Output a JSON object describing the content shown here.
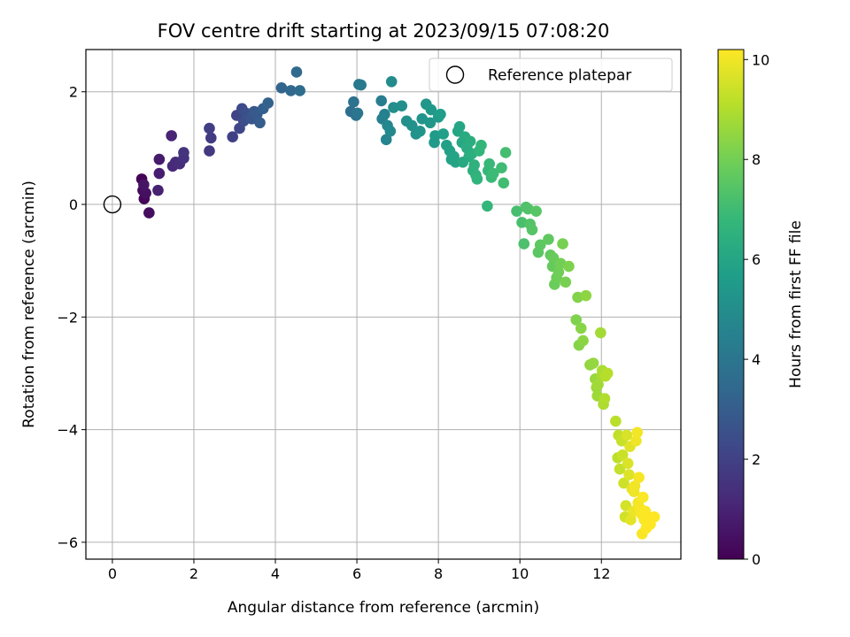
{
  "chart_data": {
    "type": "scatter",
    "title": "FOV centre drift starting at 2023/09/15 07:08:20",
    "xlabel": "Angular distance from reference (arcmin)",
    "ylabel": "Rotation from reference (arcmin)",
    "xlim": [
      -0.65,
      13.95
    ],
    "ylim": [
      -6.3,
      2.75
    ],
    "xticks": [
      0,
      2,
      4,
      6,
      8,
      10,
      12
    ],
    "yticks": [
      -6,
      -4,
      -2,
      0,
      2
    ],
    "grid": true,
    "legend": {
      "position": "top-right",
      "entries": [
        "Reference platepar"
      ]
    },
    "reference_point": {
      "label": "Reference platepar",
      "x": 0,
      "y": 0
    },
    "colorbar": {
      "label": "Hours from first FF file",
      "colormap": "viridis",
      "range": [
        0,
        10.2
      ],
      "ticks": [
        0,
        2,
        4,
        6,
        8,
        10
      ]
    },
    "colormap_stops": [
      "#440154",
      "#482878",
      "#3e4989",
      "#31688e",
      "#26828e",
      "#1f9e89",
      "#35b779",
      "#6ece58",
      "#b5de2b",
      "#fde725"
    ],
    "series": [
      {
        "x": [
          0.72,
          0.78,
          0.75,
          0.9,
          0.82,
          0.77,
          1.15,
          1.15,
          1.12,
          1.45,
          1.48,
          1.55,
          1.65,
          1.75,
          1.75,
          2.38,
          2.42,
          2.38,
          2.95,
          3.05,
          3.12,
          3.18,
          3.22,
          3.28,
          3.35,
          3.42,
          3.48,
          3.55,
          3.62,
          3.7,
          3.82,
          4.15,
          4.38,
          4.52,
          4.6,
          5.85,
          5.92,
          5.98,
          6.02,
          6.05,
          6.1,
          6.6,
          6.62,
          6.68,
          6.72,
          6.75,
          6.82,
          6.85,
          6.9,
          7.1,
          7.22,
          7.35,
          7.45,
          7.55,
          7.6,
          7.7,
          7.8,
          7.82,
          7.9,
          7.92,
          8.0,
          8.05,
          8.12,
          8.2,
          8.28,
          8.32,
          8.38,
          8.42,
          8.48,
          8.52,
          8.58,
          8.6,
          8.65,
          8.7,
          8.75,
          8.78,
          8.82,
          8.85,
          8.88,
          8.92,
          8.95,
          9.0,
          9.05,
          9.2,
          9.22,
          9.25,
          9.3,
          9.35,
          9.55,
          9.6,
          9.65,
          9.92,
          10.05,
          10.1,
          10.15,
          10.2,
          10.25,
          10.3,
          10.4,
          10.45,
          10.5,
          10.7,
          10.75,
          10.8,
          10.82,
          10.85,
          10.9,
          10.95,
          11.0,
          11.05,
          11.12,
          11.2,
          11.38,
          11.42,
          11.45,
          11.5,
          11.55,
          11.62,
          11.72,
          11.8,
          11.85,
          11.88,
          11.9,
          11.92,
          11.98,
          12.0,
          12.02,
          12.05,
          12.08,
          12.1,
          12.15,
          12.35,
          12.4,
          12.42,
          12.45,
          12.5,
          12.52,
          12.55,
          12.58,
          12.6,
          12.62,
          12.65,
          12.68,
          12.7,
          12.72,
          12.75,
          12.78,
          12.8,
          12.82,
          12.85,
          12.88,
          12.9,
          12.92,
          12.95,
          12.98,
          13.0,
          13.02,
          13.05,
          13.08,
          13.1,
          13.15,
          13.2,
          13.3
        ],
        "y": [
          0.45,
          0.1,
          0.25,
          -0.15,
          0.2,
          0.35,
          0.8,
          0.55,
          0.25,
          1.22,
          0.68,
          0.75,
          0.72,
          0.82,
          0.92,
          0.95,
          1.18,
          1.35,
          1.2,
          1.58,
          1.35,
          1.7,
          1.48,
          1.62,
          1.55,
          1.52,
          1.65,
          1.6,
          1.45,
          1.7,
          1.8,
          2.07,
          2.02,
          2.35,
          2.02,
          1.65,
          1.82,
          1.58,
          1.62,
          2.13,
          2.12,
          1.84,
          1.52,
          1.6,
          1.15,
          1.4,
          1.3,
          2.18,
          1.72,
          1.75,
          1.48,
          1.4,
          1.25,
          1.3,
          1.52,
          1.78,
          1.45,
          1.68,
          1.1,
          1.22,
          1.55,
          1.6,
          1.25,
          1.05,
          0.95,
          0.8,
          0.85,
          0.75,
          1.3,
          1.38,
          1.1,
          0.75,
          1.2,
          1.0,
          0.85,
          1.12,
          0.9,
          0.6,
          0.7,
          0.52,
          0.45,
          0.95,
          1.05,
          -0.03,
          0.6,
          0.72,
          0.48,
          0.55,
          0.65,
          0.38,
          0.92,
          -0.12,
          -0.32,
          -0.7,
          -0.05,
          -0.08,
          -0.35,
          -0.45,
          -0.12,
          -0.85,
          -0.72,
          -0.62,
          -0.9,
          -1.1,
          -0.95,
          -1.42,
          -1.3,
          -1.2,
          -1.05,
          -0.7,
          -1.38,
          -1.1,
          -2.05,
          -1.65,
          -2.5,
          -2.2,
          -2.42,
          -1.62,
          -2.85,
          -2.82,
          -3.1,
          -3.25,
          -3.4,
          -3.2,
          -2.28,
          -3.05,
          -2.95,
          -3.55,
          -3.45,
          -3.05,
          -3.0,
          -3.85,
          -4.5,
          -4.1,
          -4.7,
          -4.2,
          -4.45,
          -4.95,
          -5.55,
          -5.35,
          -4.1,
          -4.6,
          -4.8,
          -4.3,
          -5.6,
          -5.05,
          -5.45,
          -5.1,
          -5.0,
          -4.2,
          -4.05,
          -5.3,
          -4.85,
          -5.4,
          -5.5,
          -5.85,
          -5.2,
          -5.6,
          -5.45,
          -5.75,
          -5.55,
          -5.68,
          -5.55
        ],
        "hours": [
          0.05,
          0.15,
          0.25,
          0.35,
          0.45,
          0.55,
          0.75,
          0.85,
          0.95,
          1.05,
          1.15,
          1.25,
          1.35,
          1.45,
          1.55,
          1.7,
          1.8,
          1.9,
          2.0,
          2.1,
          2.2,
          2.3,
          2.4,
          2.5,
          2.6,
          2.7,
          2.8,
          2.9,
          3.0,
          3.1,
          3.2,
          3.3,
          3.4,
          3.5,
          3.6,
          3.7,
          3.8,
          3.9,
          4.0,
          4.1,
          4.2,
          4.3,
          4.4,
          4.5,
          4.6,
          4.7,
          4.8,
          4.9,
          5.0,
          5.05,
          5.1,
          5.15,
          5.2,
          5.25,
          5.3,
          5.35,
          5.4,
          5.45,
          5.5,
          5.55,
          5.6,
          5.65,
          5.7,
          5.75,
          5.8,
          5.85,
          5.9,
          5.95,
          6.0,
          6.05,
          6.1,
          6.15,
          6.2,
          6.25,
          6.3,
          6.35,
          6.4,
          6.45,
          6.5,
          6.55,
          6.6,
          6.65,
          6.7,
          6.75,
          6.8,
          6.85,
          6.9,
          6.95,
          7.0,
          7.05,
          7.1,
          7.15,
          7.2,
          7.25,
          7.3,
          7.35,
          7.4,
          7.45,
          7.5,
          7.55,
          7.6,
          7.65,
          7.7,
          7.75,
          7.8,
          7.85,
          7.9,
          7.95,
          8.0,
          8.05,
          8.1,
          8.15,
          8.2,
          8.25,
          8.3,
          8.35,
          8.4,
          8.45,
          8.5,
          8.55,
          8.6,
          8.65,
          8.7,
          8.75,
          8.8,
          8.85,
          8.9,
          8.95,
          9.0,
          9.05,
          9.1,
          9.15,
          9.2,
          9.25,
          9.3,
          9.35,
          9.4,
          9.45,
          9.5,
          9.55,
          9.6,
          9.65,
          9.7,
          9.75,
          9.8,
          9.85,
          9.9,
          9.95,
          10.0,
          10.0,
          10.05,
          10.05,
          10.1,
          10.1,
          10.1,
          10.12,
          10.15,
          10.15,
          10.18,
          10.2,
          10.2,
          10.2,
          10.2
        ]
      }
    ]
  }
}
